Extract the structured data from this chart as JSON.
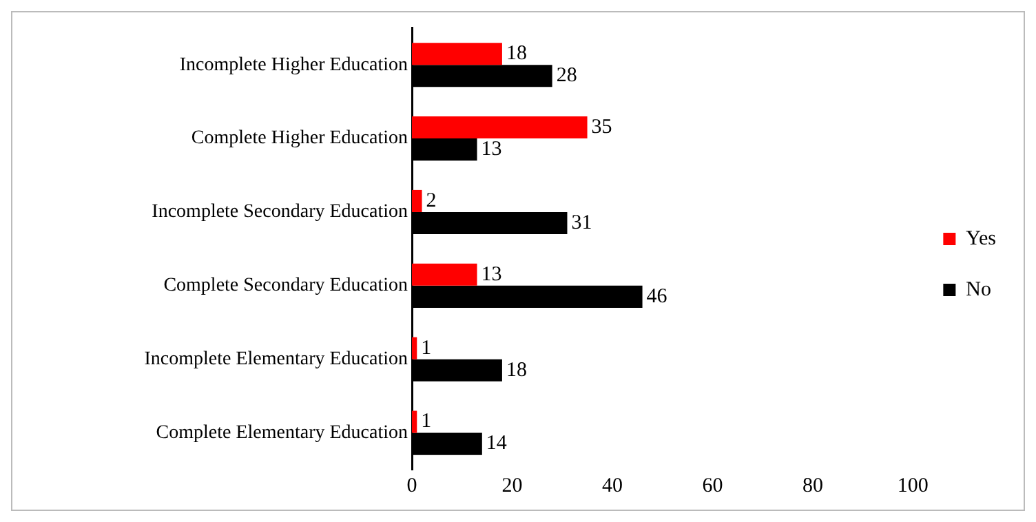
{
  "chart_data": {
    "type": "bar",
    "orientation": "horizontal",
    "categories": [
      "Incomplete Higher Education",
      "Complete Higher Education",
      "Incomplete Secondary Education",
      "Complete Secondary Education",
      "Incomplete Elementary Education",
      "Complete Elementary Education"
    ],
    "series": [
      {
        "name": "Yes",
        "color": "#ff0000",
        "values": [
          18,
          35,
          2,
          13,
          1,
          1
        ]
      },
      {
        "name": "No",
        "color": "#000000",
        "values": [
          28,
          13,
          31,
          46,
          18,
          14
        ]
      }
    ],
    "xlim": [
      0,
      100
    ],
    "xticks": [
      0,
      20,
      40,
      60,
      80,
      100
    ],
    "grid": false,
    "legend": "right",
    "data_labels": true
  }
}
